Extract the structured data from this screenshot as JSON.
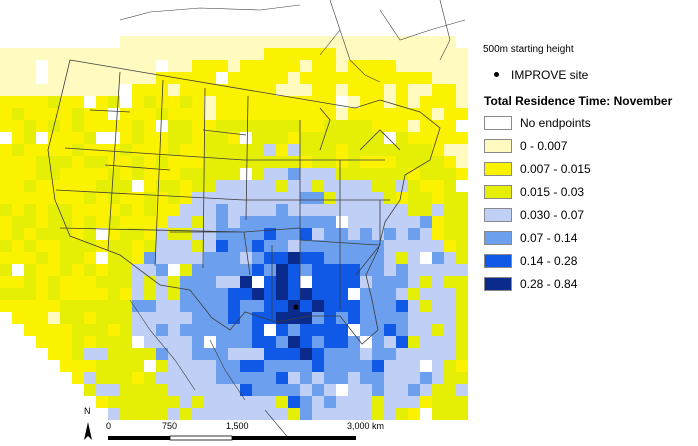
{
  "legend": {
    "subtitle": "500m starting height",
    "site_label": "IMPROVE site",
    "title": "Total Residence Time: November",
    "classes": [
      {
        "label": "No endpoints",
        "color": "#ffffff"
      },
      {
        "label": "0 - 0.007",
        "color": "#fffac0"
      },
      {
        "label": "0.007 - 0.015",
        "color": "#fbf200"
      },
      {
        "label": "0.015 - 0.03",
        "color": "#e5ef05"
      },
      {
        "label": "0.030 - 0.07",
        "color": "#bfcff5"
      },
      {
        "label": "0.07 - 0.14",
        "color": "#6ca0ee"
      },
      {
        "label": "0.14 - 0.28",
        "color": "#0f59e6"
      },
      {
        "label": "0.28 - 0.84",
        "color": "#0a2a8c"
      }
    ]
  },
  "scale_bar": {
    "ticks": [
      "0",
      "750",
      "1,500",
      "3,000 km"
    ],
    "north_label": "N"
  },
  "colors": {
    "boundary": "#3c3c3c",
    "site_marker": "#000000"
  }
}
